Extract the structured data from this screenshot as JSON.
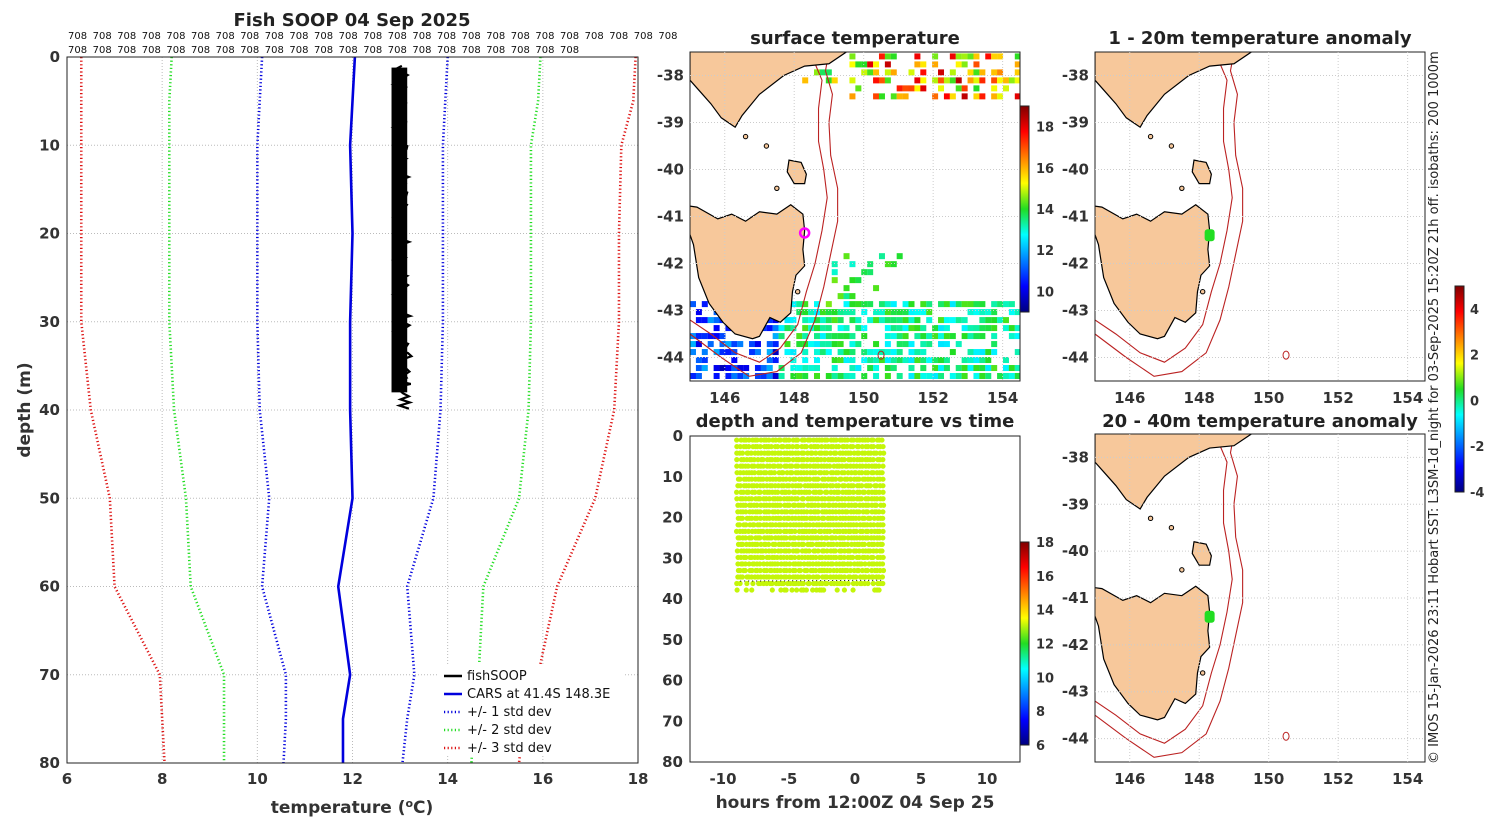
{
  "profile": {
    "title": "Fish SOOP 04 Sep 2025",
    "xlabel": "temperature (",
    "xlabel_sup": "o",
    "xlabel_end": "C)",
    "ylabel": "depth (m)",
    "top_label": "708",
    "top_row1_count": 25,
    "top_row2_count": 21
  },
  "map_surface": {
    "title": "surface temperature"
  },
  "map_anom1": {
    "title": "1 - 20m temperature anomaly"
  },
  "map_anom2": {
    "title": "20 - 40m temperature anomaly"
  },
  "timeplot": {
    "title": "depth and temperature vs time",
    "xlabel": "hours from 12:00Z 04 Sep 25"
  },
  "side_text": "© IMOS 15-Jan-2026 23:11 Hobart SST: L3SM-1d_night for 03-Sep-2025 15:20Z 21h off. isobaths: 200  1000m",
  "chart_data": [
    {
      "type": "line",
      "title": "Fish SOOP 04 Sep 2025",
      "xlabel": "temperature (oC)",
      "ylabel": "depth (m)",
      "xlim": [
        6,
        18
      ],
      "ylim": [
        80,
        0
      ],
      "xticks": [
        6,
        8,
        10,
        12,
        14,
        16,
        18
      ],
      "yticks": [
        0,
        10,
        20,
        30,
        40,
        50,
        60,
        70,
        80
      ],
      "grid": true,
      "legend": "bottom-right",
      "series": [
        {
          "name": "fishSOOP",
          "color": "#000000",
          "style": "solid",
          "depth": [
            1,
            5,
            10,
            20,
            30,
            35,
            40
          ],
          "temp": [
            13.0,
            13.0,
            13.0,
            13.05,
            13.05,
            13.05,
            13.1
          ]
        },
        {
          "name": "CARS at 41.4S 148.3E",
          "color": "#0000dd",
          "style": "solid",
          "depth": [
            0,
            5,
            10,
            20,
            30,
            40,
            50,
            60,
            70,
            75,
            80
          ],
          "temp": [
            12.05,
            12.0,
            11.95,
            12.0,
            11.95,
            11.95,
            12.0,
            11.7,
            11.95,
            11.8,
            11.8
          ]
        },
        {
          "name": "+/- 1 std dev",
          "color": "#0000dd",
          "style": "dotted",
          "depth": [
            0,
            5,
            10,
            20,
            30,
            40,
            50,
            60,
            70,
            75,
            80
          ],
          "temp": [
            10.1,
            10.05,
            10.0,
            10.0,
            10.0,
            10.05,
            10.25,
            10.1,
            10.6,
            10.6,
            10.55
          ]
        },
        {
          "name": "+/- 1 std dev",
          "color": "#0000dd",
          "style": "dotted",
          "depth": [
            0,
            5,
            10,
            20,
            30,
            40,
            50,
            60,
            70,
            75,
            80
          ],
          "temp": [
            14.0,
            13.95,
            13.9,
            13.9,
            13.9,
            13.85,
            13.7,
            13.15,
            13.3,
            13.15,
            13.05
          ]
        },
        {
          "name": "+/- 2 std dev",
          "color": "#22dd22",
          "style": "dotted",
          "depth": [
            0,
            5,
            10,
            20,
            30,
            40,
            50,
            60,
            70,
            75,
            80
          ],
          "temp": [
            8.2,
            8.15,
            8.15,
            8.15,
            8.15,
            8.25,
            8.5,
            8.6,
            9.3,
            9.3,
            9.3
          ]
        },
        {
          "name": "+/- 2 std dev",
          "color": "#22dd22",
          "style": "dotted",
          "depth": [
            0,
            5,
            10,
            20,
            30,
            40,
            50,
            60,
            70,
            75,
            80
          ],
          "temp": [
            15.95,
            15.9,
            15.75,
            15.75,
            15.75,
            15.7,
            15.5,
            14.75,
            14.65,
            14.55,
            14.5
          ]
        },
        {
          "name": "+/- 3 std dev",
          "color": "#dd1111",
          "style": "dotted",
          "depth": [
            0,
            5,
            10,
            20,
            30,
            40,
            50,
            60,
            70,
            75,
            80
          ],
          "temp": [
            6.3,
            6.3,
            6.3,
            6.3,
            6.3,
            6.5,
            6.9,
            7.0,
            7.95,
            8.0,
            8.05
          ]
        },
        {
          "name": "+/- 3 std dev",
          "color": "#dd1111",
          "style": "dotted",
          "depth": [
            0,
            5,
            10,
            20,
            30,
            40,
            50,
            60,
            70,
            75,
            80
          ],
          "temp": [
            17.95,
            17.9,
            17.65,
            17.6,
            17.6,
            17.5,
            17.1,
            16.3,
            15.9,
            15.6,
            15.5
          ]
        }
      ]
    },
    {
      "type": "heatmap",
      "title": "surface temperature",
      "xlim": [
        145,
        154.5
      ],
      "ylim": [
        -44.5,
        -37.5
      ],
      "xticks": [
        146,
        148,
        150,
        152,
        154
      ],
      "yticks": [
        -38,
        -39,
        -40,
        -41,
        -42,
        -43,
        -44
      ],
      "colorbar": {
        "min": 9,
        "max": 19,
        "ticks": [
          10,
          12,
          14,
          16,
          18
        ]
      },
      "marker": {
        "lon": 148.3,
        "lat": -41.35
      }
    },
    {
      "type": "scatter",
      "title": "depth and temperature vs time",
      "xlabel": "hours from 12:00Z 04 Sep 25",
      "xlim": [
        -12.5,
        12.5
      ],
      "ylim": [
        80,
        0
      ],
      "xticks": [
        -10,
        -5,
        0,
        5,
        10
      ],
      "yticks": [
        0,
        10,
        20,
        30,
        40,
        50,
        60,
        70,
        80
      ],
      "x_range": [
        -8.9,
        2.3
      ],
      "depth_range": [
        1,
        39
      ],
      "temperature": 13.1,
      "colorbar": {
        "min": 6,
        "max": 18,
        "ticks": [
          6,
          8,
          10,
          12,
          14,
          16,
          18
        ]
      }
    },
    {
      "type": "heatmap",
      "title": "1 - 20m temperature anomaly",
      "xlim": [
        145,
        154.5
      ],
      "ylim": [
        -44.5,
        -37.5
      ],
      "xticks": [
        146,
        148,
        150,
        152,
        154
      ],
      "yticks": [
        -38,
        -39,
        -40,
        -41,
        -42,
        -43,
        -44
      ],
      "marker": {
        "lon": 148.3,
        "lat": -41.4,
        "value": 0.5
      }
    },
    {
      "type": "heatmap",
      "title": "20 - 40m temperature anomaly",
      "xlim": [
        145,
        154.5
      ],
      "ylim": [
        -44.5,
        -37.5
      ],
      "xticks": [
        146,
        148,
        150,
        152,
        154
      ],
      "yticks": [
        -38,
        -39,
        -40,
        -41,
        -42,
        -43,
        -44
      ],
      "marker": {
        "lon": 148.3,
        "lat": -41.4,
        "value": 0.5
      },
      "colorbar": {
        "min": -4,
        "max": 5,
        "ticks": [
          -4,
          -2,
          0,
          2,
          4
        ]
      }
    }
  ]
}
